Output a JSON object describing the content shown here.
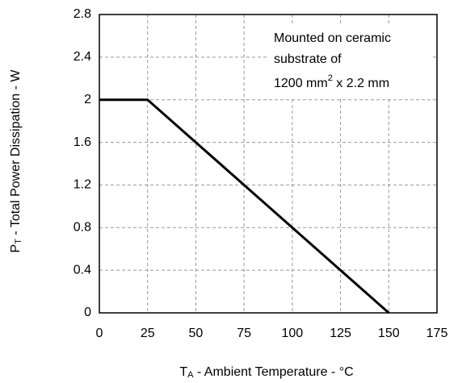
{
  "chart_data": {
    "type": "line",
    "x": [
      0,
      25,
      150
    ],
    "series": [
      {
        "name": "PT",
        "color": "#000000",
        "values": [
          2,
          2,
          0
        ]
      }
    ],
    "xlim": [
      0,
      175
    ],
    "xticks": [
      0,
      25,
      50,
      75,
      100,
      125,
      150,
      175
    ],
    "ylim": [
      0,
      2.8
    ],
    "yticks": [
      0,
      0.4,
      0.8,
      1.2,
      1.6,
      2,
      2.4,
      2.8
    ],
    "grid": true,
    "xlabel": {
      "main": "T",
      "sub": "A",
      "rest": " - Ambient Temperature - °C"
    },
    "ylabel": {
      "main": "P",
      "sub": "T",
      "rest": " - Total Power Dissipation - W"
    },
    "annotation": {
      "line1": "Mounted on ceramic",
      "line2": "substrate of",
      "line3": "1200 mm",
      "sup": "2",
      "line3b": " x 2.2 mm"
    }
  }
}
